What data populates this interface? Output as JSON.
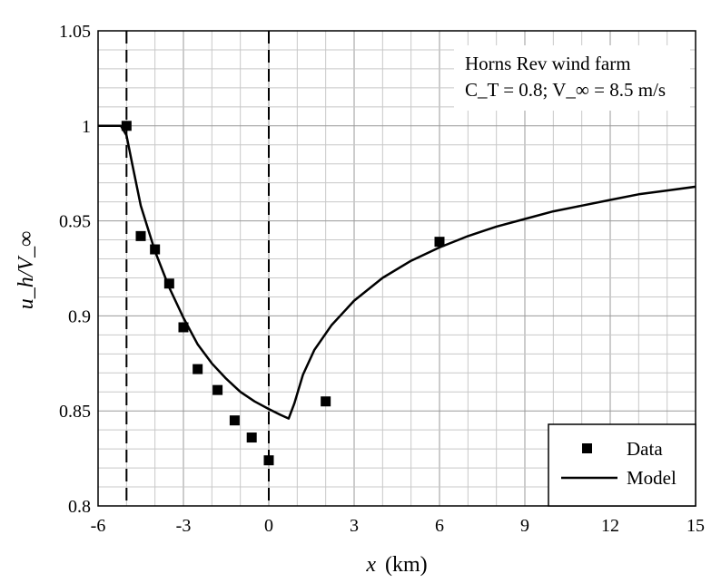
{
  "chart_data": {
    "type": "scatter",
    "title": "",
    "xlabel_var": "x",
    "xlabel_unit": "(km)",
    "ylabel": "u_h/V_∞",
    "xlim": [
      -6,
      15
    ],
    "ylim": [
      0.8,
      1.05
    ],
    "x_ticks": [
      "-6",
      "-3",
      "0",
      "3",
      "6",
      "9",
      "12",
      "15"
    ],
    "y_ticks": [
      "0.8",
      "0.85",
      "0.9",
      "0.95",
      "1",
      "1.05"
    ],
    "grid": true,
    "reference_lines_x": [
      -5,
      0
    ],
    "annotation": {
      "line1": "Horns Rev wind farm",
      "line2": "C_T = 0.8; V_∞ = 8.5 m/s"
    },
    "legend": {
      "position": "bottom-right",
      "data_label": "Data",
      "model_label": "Model"
    },
    "series": [
      {
        "name": "Data",
        "kind": "scatter",
        "x": [
          -5.0,
          -4.5,
          -4.0,
          -3.5,
          -3.0,
          -2.5,
          -1.8,
          -1.2,
          -0.6,
          0.0,
          2.0,
          6.0
        ],
        "y": [
          1.0,
          0.942,
          0.935,
          0.917,
          0.894,
          0.872,
          0.861,
          0.845,
          0.836,
          0.824,
          0.855,
          0.939
        ]
      },
      {
        "name": "Model",
        "kind": "line",
        "x": [
          -6.0,
          -5.2,
          -5.0,
          -4.8,
          -4.5,
          -4.0,
          -3.5,
          -3.0,
          -2.5,
          -2.0,
          -1.5,
          -1.0,
          -0.5,
          0.0,
          0.4,
          0.7,
          0.9,
          1.2,
          1.6,
          2.2,
          3.0,
          4.0,
          5.0,
          6.0,
          7.0,
          8.0,
          9.0,
          10.0,
          11.0,
          12.0,
          13.0,
          14.0,
          15.0
        ],
        "y": [
          1.0,
          1.0,
          0.995,
          0.98,
          0.958,
          0.934,
          0.915,
          0.899,
          0.885,
          0.875,
          0.867,
          0.86,
          0.855,
          0.851,
          0.848,
          0.846,
          0.854,
          0.869,
          0.882,
          0.895,
          0.908,
          0.92,
          0.929,
          0.936,
          0.942,
          0.947,
          0.951,
          0.955,
          0.958,
          0.961,
          0.964,
          0.966,
          0.968
        ]
      }
    ]
  }
}
